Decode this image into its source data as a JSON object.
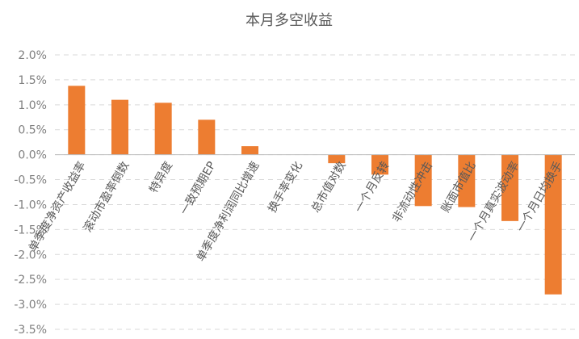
{
  "chart_data": {
    "type": "bar",
    "title": "本月多空收益",
    "categories": [
      "单季度净资产收益率",
      "滚动市盈率倒数",
      "特异度",
      "一致预期EP",
      "单季度净利润同比增速",
      "换手率变化",
      "总市值对数",
      "一个月反转",
      "非流动性冲击",
      "账面市值比",
      "一个月真实波动率",
      "一个月日均换手"
    ],
    "values": [
      0.0138,
      0.011,
      0.0104,
      0.007,
      0.0017,
      0.0,
      -0.0017,
      -0.004,
      -0.0103,
      -0.0105,
      -0.0133,
      -0.028
    ],
    "ylim": [
      -0.035,
      0.02
    ],
    "yticks": [
      0.02,
      0.015,
      0.01,
      0.005,
      0.0,
      -0.005,
      -0.01,
      -0.015,
      -0.02,
      -0.025,
      -0.03,
      -0.035
    ],
    "ytick_labels": [
      "2.0%",
      "1.5%",
      "1.0%",
      "0.5%",
      "0.0%",
      "-0.5%",
      "-1.0%",
      "-1.5%",
      "-2.0%",
      "-2.5%",
      "-3.0%",
      "-3.5%"
    ],
    "grid": true,
    "legend": "none",
    "bar_color": "#ED7D31"
  }
}
